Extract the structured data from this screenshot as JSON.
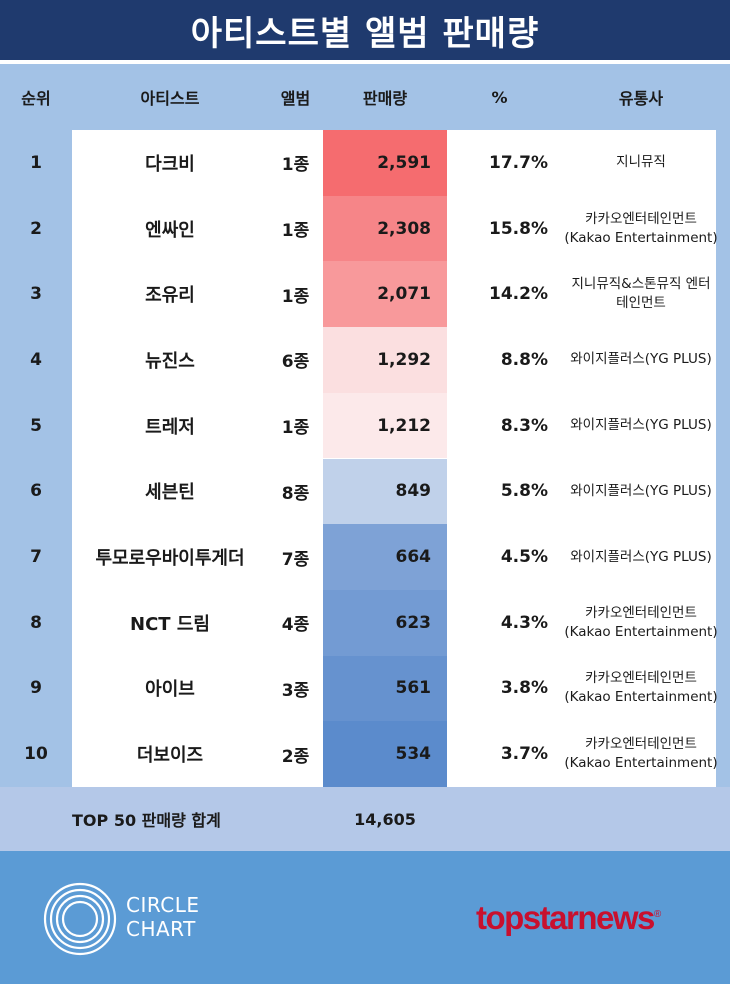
{
  "title": "아티스트별 앨범 판매량",
  "headers": {
    "rank": "순위",
    "artist": "아티스트",
    "album": "앨범",
    "sales": "판매량",
    "pct": "%",
    "distributor": "유통사"
  },
  "colors": {
    "title_bg": "#1f3a6e",
    "header_bg": "#a3c2e6",
    "total_bg": "#b4c8e8",
    "footer_bg": "#5b9bd5",
    "brand_red": "#c8102e"
  },
  "chart_data": {
    "type": "table",
    "title": "아티스트별 앨범 판매량",
    "columns": [
      "순위",
      "아티스트",
      "앨범",
      "판매량",
      "%",
      "유통사"
    ],
    "rows": [
      {
        "rank": "1",
        "artist": "다크비",
        "album": "1종",
        "sales": 2591,
        "sales_text": "2,591",
        "pct": "17.7%",
        "dist_line1": "지니뮤직",
        "dist_line2": "",
        "fill": "#f56c6f"
      },
      {
        "rank": "2",
        "artist": "엔싸인",
        "album": "1종",
        "sales": 2308,
        "sales_text": "2,308",
        "pct": "15.8%",
        "dist_line1": "카카오엔터테인먼트",
        "dist_line2": "(Kakao Entertainment)",
        "fill": "#f68588"
      },
      {
        "rank": "3",
        "artist": "조유리",
        "album": "1종",
        "sales": 2071,
        "sales_text": "2,071",
        "pct": "14.2%",
        "dist_line1": "지니뮤직&스톤뮤직 엔터",
        "dist_line2": "테인먼트",
        "fill": "#f8999b"
      },
      {
        "rank": "4",
        "artist": "뉴진스",
        "album": "6종",
        "sales": 1292,
        "sales_text": "1,292",
        "pct": "8.8%",
        "dist_line1": "와이지플러스(YG PLUS)",
        "dist_line2": "",
        "fill": "#fbdfe0"
      },
      {
        "rank": "5",
        "artist": "트레저",
        "album": "1종",
        "sales": 1212,
        "sales_text": "1,212",
        "pct": "8.3%",
        "dist_line1": "와이지플러스(YG PLUS)",
        "dist_line2": "",
        "fill": "#fce9ea"
      },
      {
        "rank": "6",
        "artist": "세븐틴",
        "album": "8종",
        "sales": 849,
        "sales_text": "849",
        "pct": "5.8%",
        "dist_line1": "와이지플러스(YG PLUS)",
        "dist_line2": "",
        "fill": "#c0d1ea"
      },
      {
        "rank": "7",
        "artist": "투모로우바이투게더",
        "album": "7종",
        "sales": 664,
        "sales_text": "664",
        "pct": "4.5%",
        "dist_line1": "와이지플러스(YG PLUS)",
        "dist_line2": "",
        "fill": "#7ea2d6"
      },
      {
        "rank": "8",
        "artist": "NCT 드림",
        "album": "4종",
        "sales": 623,
        "sales_text": "623",
        "pct": "4.3%",
        "dist_line1": "카카오엔터테인먼트",
        "dist_line2": "(Kakao Entertainment)",
        "fill": "#739bd3"
      },
      {
        "rank": "9",
        "artist": "아이브",
        "album": "3종",
        "sales": 561,
        "sales_text": "561",
        "pct": "3.8%",
        "dist_line1": "카카오엔터테인먼트",
        "dist_line2": "(Kakao Entertainment)",
        "fill": "#6692cf"
      },
      {
        "rank": "10",
        "artist": "더보이즈",
        "album": "2종",
        "sales": 534,
        "sales_text": "534",
        "pct": "3.7%",
        "dist_line1": "카카오엔터테인먼트",
        "dist_line2": "(Kakao Entertainment)",
        "fill": "#5b8bcc"
      }
    ]
  },
  "total": {
    "label": "TOP 50 판매량 합계",
    "value": "14,605"
  },
  "footer": {
    "circle_line1": "CIRCLE",
    "circle_line2": "CHART",
    "brand": "topstarnews",
    "brand_mark": "®"
  }
}
